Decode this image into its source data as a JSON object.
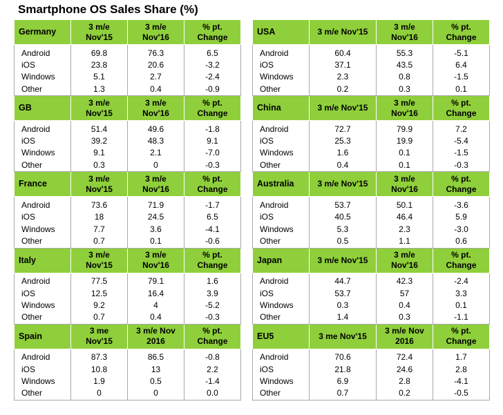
{
  "chart_data": {
    "type": "table",
    "title": "Smartphone OS Sales Share (%)",
    "left_blocks": [
      {
        "country": "Germany",
        "headers": [
          "3 m/e\nNov'15",
          "3 m/e\nNov'16",
          "% pt.\nChange"
        ],
        "rows": [
          [
            "Android",
            "69.8",
            "76.3",
            "6.5"
          ],
          [
            "iOS",
            "23.8",
            "20.6",
            "-3.2"
          ],
          [
            "Windows",
            "5.1",
            "2.7",
            "-2.4"
          ],
          [
            "Other",
            "1.3",
            "0.4",
            "-0.9"
          ]
        ]
      },
      {
        "country": "GB",
        "headers": [
          "3 m/e\nNov'15",
          "3 m/e\nNov'16",
          "% pt.\nChange"
        ],
        "rows": [
          [
            "Android",
            "51.4",
            "49.6",
            "-1.8"
          ],
          [
            "iOS",
            "39.2",
            "48.3",
            "9.1"
          ],
          [
            "Windows",
            "9.1",
            "2.1",
            "-7.0"
          ],
          [
            "Other",
            "0.3",
            "0",
            "-0.3"
          ]
        ]
      },
      {
        "country": "France",
        "headers": [
          "3 m/e\nNov'15",
          "3 m/e\nNov'16",
          "% pt.\nChange"
        ],
        "rows": [
          [
            "Android",
            "73.6",
            "71.9",
            "-1.7"
          ],
          [
            "iOS",
            "18",
            "24.5",
            "6.5"
          ],
          [
            "Windows",
            "7.7",
            "3.6",
            "-4.1"
          ],
          [
            "Other",
            "0.7",
            "0.1",
            "-0.6"
          ]
        ]
      },
      {
        "country": "Italy",
        "headers": [
          "3 m/e\nNov'15",
          "3 m/e\nNov'16",
          "% pt.\nChange"
        ],
        "rows": [
          [
            "Android",
            "77.5",
            "79.1",
            "1.6"
          ],
          [
            "iOS",
            "12.5",
            "16.4",
            "3.9"
          ],
          [
            "Windows",
            "9.2",
            "4",
            "-5.2"
          ],
          [
            "Other",
            "0.7",
            "0.4",
            "-0.3"
          ]
        ]
      },
      {
        "country": "Spain",
        "headers": [
          "3 me\nNov'15",
          "3 m/e Nov\n2016",
          "% pt.\nChange"
        ],
        "rows": [
          [
            "Android",
            "87.3",
            "86.5",
            "-0.8"
          ],
          [
            "iOS",
            "10.8",
            "13",
            "2.2"
          ],
          [
            "Windows",
            "1.9",
            "0.5",
            "-1.4"
          ],
          [
            "Other",
            "0",
            "0",
            "0.0"
          ]
        ]
      }
    ],
    "right_blocks": [
      {
        "country": "USA",
        "headers": [
          "3 m/e Nov'15",
          "3 m/e\nNov'16",
          "% pt.\nChange"
        ],
        "rows": [
          [
            "Android",
            "60.4",
            "55.3",
            "-5.1"
          ],
          [
            "iOS",
            "37.1",
            "43.5",
            "6.4"
          ],
          [
            "Windows",
            "2.3",
            "0.8",
            "-1.5"
          ],
          [
            "Other",
            "0.2",
            "0.3",
            "0.1"
          ]
        ]
      },
      {
        "country": "China",
        "headers": [
          "3 m/e Nov'15",
          "3 m/e\nNov'16",
          "% pt.\nChange"
        ],
        "rows": [
          [
            "Android",
            "72.7",
            "79.9",
            "7.2"
          ],
          [
            "iOS",
            "25.3",
            "19.9",
            "-5.4"
          ],
          [
            "Windows",
            "1.6",
            "0.1",
            "-1.5"
          ],
          [
            "Other",
            "0.4",
            "0.1",
            "-0.3"
          ]
        ]
      },
      {
        "country": "Australia",
        "headers": [
          "3 m/e Nov'15",
          "3 m/e\nNov'16",
          "% pt.\nChange"
        ],
        "rows": [
          [
            "Android",
            "53.7",
            "50.1",
            "-3.6"
          ],
          [
            "iOS",
            "40.5",
            "46.4",
            "5.9"
          ],
          [
            "Windows",
            "5.3",
            "2.3",
            "-3.0"
          ],
          [
            "Other",
            "0.5",
            "1.1",
            "0.6"
          ]
        ]
      },
      {
        "country": "Japan",
        "headers": [
          "3 m/e Nov'15",
          "3 m/e\nNov'16",
          "% pt.\nChange"
        ],
        "rows": [
          [
            "Android",
            "44.7",
            "42.3",
            "-2.4"
          ],
          [
            "iOS",
            "53.7",
            "57",
            "3.3"
          ],
          [
            "Windows",
            "0.3",
            "0.4",
            "0.1"
          ],
          [
            "Other",
            "1.4",
            "0.3",
            "-1.1"
          ]
        ]
      },
      {
        "country": "EU5",
        "headers": [
          "3 me Nov'15",
          "3 m/e Nov\n2016",
          "% pt.\nChange"
        ],
        "rows": [
          [
            "Android",
            "70.6",
            "72.4",
            "1.7"
          ],
          [
            "iOS",
            "21.8",
            "24.6",
            "2.8"
          ],
          [
            "Windows",
            "6.9",
            "2.8",
            "-4.1"
          ],
          [
            "Other",
            "0.7",
            "0.2",
            "-0.5"
          ]
        ]
      }
    ]
  }
}
